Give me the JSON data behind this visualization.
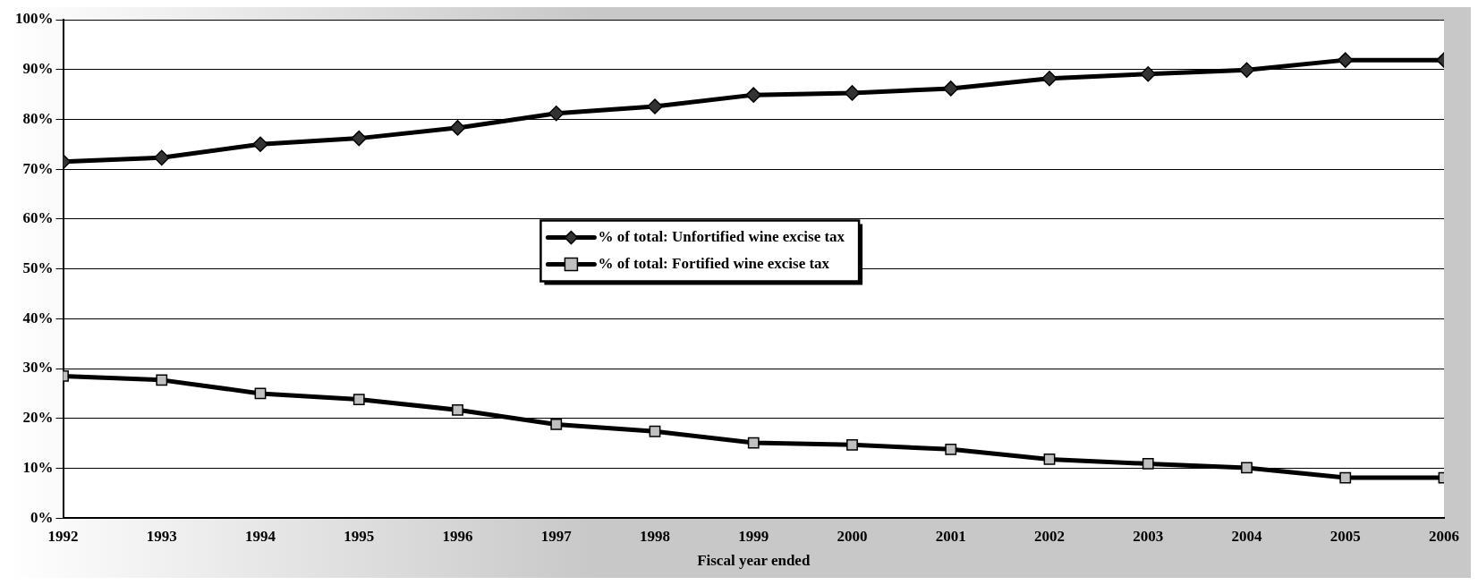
{
  "chart_data": {
    "type": "line",
    "xlabel": "Fiscal year ended",
    "x": [
      1992,
      1993,
      1994,
      1995,
      1996,
      1997,
      1998,
      1999,
      2000,
      2001,
      2002,
      2003,
      2004,
      2005,
      2006
    ],
    "series": [
      {
        "name": "% of total: Unfortified wine excise tax",
        "color": "#000000",
        "marker": "diamond",
        "values": [
          71.5,
          72.3,
          75.0,
          76.2,
          78.3,
          81.2,
          82.6,
          84.9,
          85.3,
          86.2,
          88.2,
          89.1,
          89.9,
          91.9,
          91.9
        ]
      },
      {
        "name": "% of total: Fortified wine excise tax",
        "color": "#000000",
        "marker": "square",
        "values": [
          28.5,
          27.7,
          25.0,
          23.8,
          21.7,
          18.8,
          17.4,
          15.1,
          14.7,
          13.8,
          11.8,
          10.9,
          10.1,
          8.1,
          8.1
        ]
      }
    ],
    "xlim": [
      1992,
      2006
    ],
    "xticks": [
      1992,
      1993,
      1994,
      1995,
      1996,
      1997,
      1998,
      1999,
      2000,
      2001,
      2002,
      2003,
      2004,
      2005,
      2006
    ],
    "ylim": [
      0,
      100
    ],
    "yticks": [
      {
        "value": 0,
        "label": "0%"
      },
      {
        "value": 10,
        "label": "10%"
      },
      {
        "value": 20,
        "label": "20%"
      },
      {
        "value": 30,
        "label": "30%"
      },
      {
        "value": 40,
        "label": "40%"
      },
      {
        "value": 50,
        "label": "50%"
      },
      {
        "value": 60,
        "label": "60%"
      },
      {
        "value": 70,
        "label": "70%"
      },
      {
        "value": 80,
        "label": "80%"
      },
      {
        "value": 90,
        "label": "90%"
      },
      {
        "value": 100,
        "label": "100%"
      }
    ],
    "grid": "y",
    "legend": "center",
    "line_style": "solid"
  }
}
